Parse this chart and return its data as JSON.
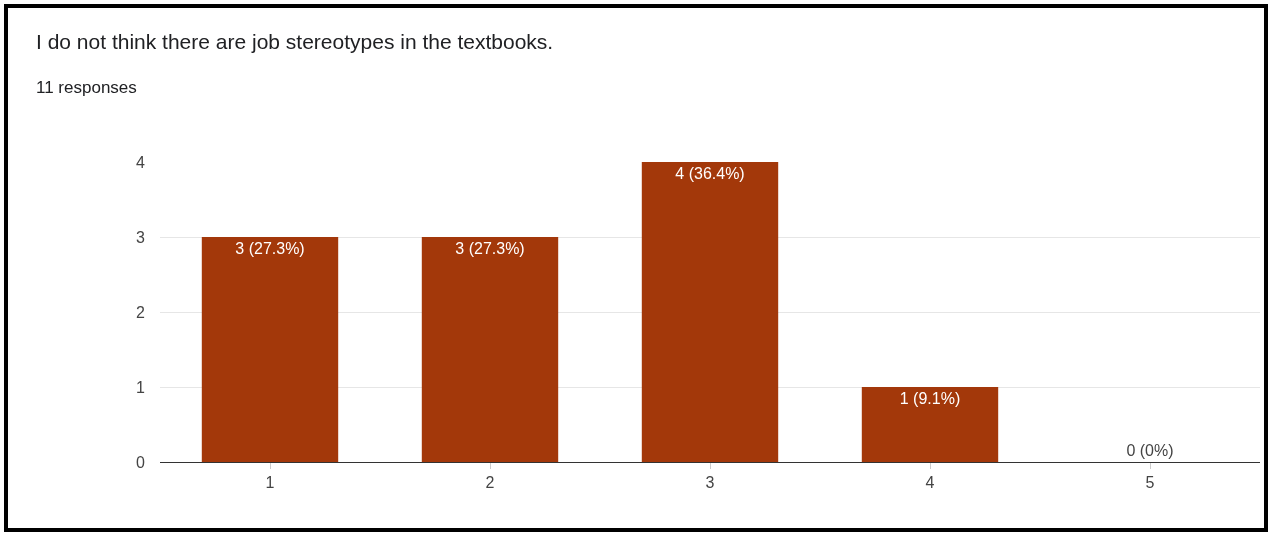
{
  "chart_data": {
    "type": "bar",
    "title": "I do not think there are job stereotypes in the textbooks.",
    "subtitle": "11 responses",
    "categories": [
      "1",
      "2",
      "3",
      "4",
      "5"
    ],
    "values": [
      3,
      3,
      4,
      1,
      0
    ],
    "value_labels": [
      "3 (27.3%)",
      "3 (27.3%)",
      "4 (36.4%)",
      "1 (9.1%)",
      "0 (0%)"
    ],
    "color": "#a3380a",
    "ylim": [
      0,
      4
    ],
    "yticks": [
      0,
      1,
      2,
      3,
      4
    ],
    "grid": "y",
    "legend": false
  }
}
